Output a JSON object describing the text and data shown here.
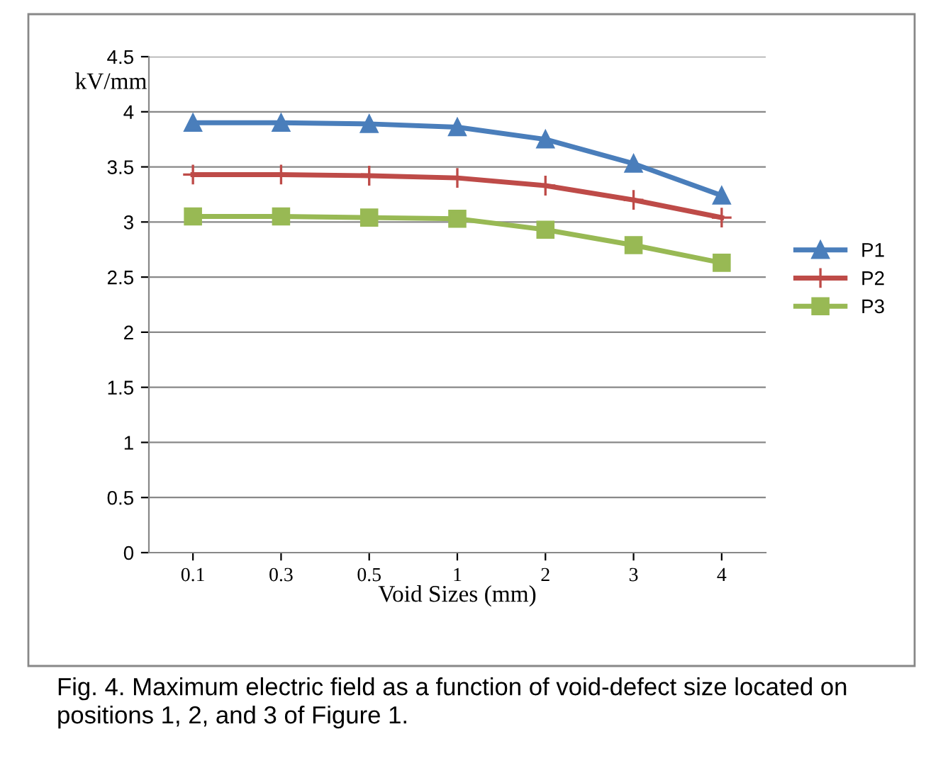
{
  "chart_data": {
    "type": "line",
    "ylabel": "kV/mm",
    "xlabel": "Void Sizes (mm)",
    "categories": [
      "0.1",
      "0.3",
      "0.5",
      "1",
      "2",
      "3",
      "4"
    ],
    "series": [
      {
        "name": "P1",
        "color": "#4a7ebb",
        "marker": "triangle",
        "values": [
          3.9,
          3.9,
          3.89,
          3.86,
          3.75,
          3.53,
          3.24
        ]
      },
      {
        "name": "P2",
        "color": "#be4b48",
        "marker": "cross",
        "values": [
          3.43,
          3.43,
          3.42,
          3.4,
          3.33,
          3.2,
          3.04
        ]
      },
      {
        "name": "P3",
        "color": "#98b954",
        "marker": "square",
        "values": [
          3.05,
          3.05,
          3.04,
          3.03,
          2.93,
          2.79,
          2.63
        ]
      }
    ],
    "ylim": [
      0,
      4.5
    ],
    "yticks": [
      0,
      0.5,
      1,
      1.5,
      2,
      2.5,
      3,
      3.5,
      4,
      4.5
    ],
    "grid": "y",
    "legend": "right",
    "line_style": "solid",
    "annotations": [
      "Fig. 4. Maximum electric field as a function of void-defect size located on positions 1, 2, and 3 of Figure 1."
    ]
  }
}
